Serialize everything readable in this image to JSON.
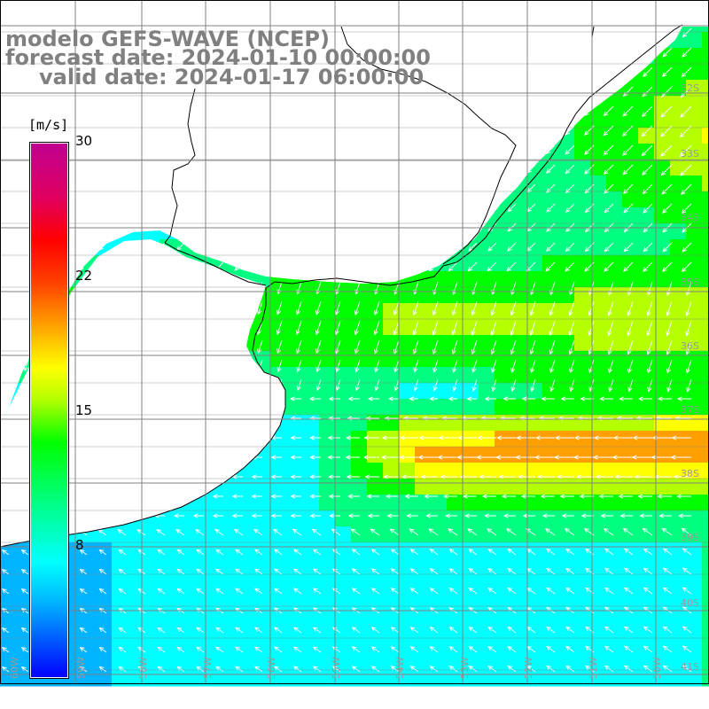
{
  "title": {
    "line1": "modelo GEFS-WAVE (NCEP)",
    "line2": "forecast date: 2024-01-10 00:00:00",
    "line3": "valid date: 2024-01-17 06:00:00"
  },
  "colorbar": {
    "unit": "[m/s]",
    "ticks": [
      "30",
      "22",
      "15",
      "8"
    ],
    "tick_values": [
      30,
      22,
      15,
      8
    ],
    "colors": [
      "#0000ff",
      "#00b4ff",
      "#00ffff",
      "#00ff80",
      "#00ff00",
      "#b4ff00",
      "#ffff00",
      "#ffa000",
      "#ff4000",
      "#ff0000",
      "#e00060",
      "#c00090"
    ]
  },
  "lat_labels": [
    "32S",
    "33S",
    "34S",
    "35S",
    "36S",
    "37S",
    "38S",
    "39S",
    "40S",
    "41S"
  ],
  "lon_labels": [
    "60W",
    "59W",
    "58W",
    "57W",
    "56W",
    "55W",
    "54W",
    "53W",
    "52W",
    "51W",
    "50W"
  ],
  "map": {
    "land_color": "#ffffff",
    "coast_color": "#000000",
    "grid_color": "#808080"
  }
}
